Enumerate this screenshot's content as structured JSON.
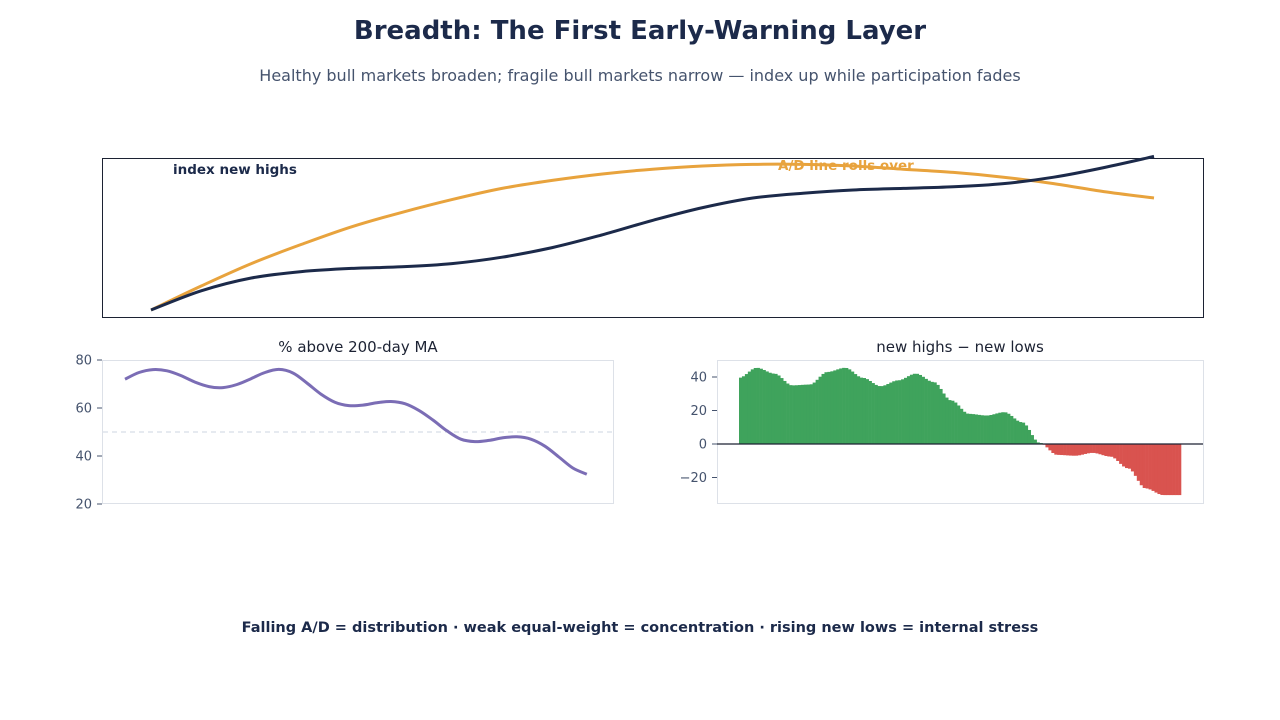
{
  "header": {
    "title": "Breadth: The First Early-Warning Layer",
    "subtitle": "Healthy bull markets broaden; fragile bull markets narrow — index up while participation fades"
  },
  "footer": {
    "text": "Falling A/D = distribution · weak equal-weight = concentration · rising new lows = internal stress"
  },
  "colors": {
    "index_line": "#1c2a4a",
    "ad_line": "#e8a33d",
    "pct_line": "#7b6db5",
    "positive_bar": "#3fa35c",
    "negative_bar": "#d9534f",
    "threshold_line": "#d8dde6",
    "zero_line": "#1c2233"
  },
  "chart_data": [
    {
      "type": "line",
      "title": "",
      "annotations": [
        {
          "text": "index new highs",
          "series": "index"
        },
        {
          "text": "A/D line rolls over",
          "series": "ad"
        }
      ],
      "x": [
        0,
        1,
        2,
        3,
        4,
        5,
        6,
        7,
        8,
        9,
        10,
        11,
        12,
        13,
        14,
        15,
        16,
        17,
        18,
        19,
        20
      ],
      "series": [
        {
          "key": "index",
          "values": [
            0.0,
            0.12,
            0.2,
            0.24,
            0.26,
            0.27,
            0.29,
            0.33,
            0.39,
            0.47,
            0.56,
            0.64,
            0.7,
            0.73,
            0.75,
            0.76,
            0.77,
            0.79,
            0.83,
            0.89,
            0.96
          ]
        },
        {
          "key": "ad",
          "values": [
            0.0,
            0.15,
            0.29,
            0.41,
            0.52,
            0.61,
            0.69,
            0.76,
            0.81,
            0.85,
            0.88,
            0.9,
            0.91,
            0.91,
            0.9,
            0.88,
            0.86,
            0.83,
            0.79,
            0.74,
            0.7
          ]
        }
      ],
      "ylim": [
        0,
        1
      ],
      "grid": false,
      "axis_ticks": false
    },
    {
      "type": "line",
      "title": "% above 200-day MA",
      "x": [
        0,
        2.5,
        5,
        7.5,
        10,
        12.5,
        15,
        17.5,
        20,
        22.5,
        25,
        27.5,
        30,
        32.5,
        35,
        37.5,
        40,
        42.5,
        45,
        47.5,
        50,
        52.5,
        55,
        57.5,
        60,
        62.5,
        65,
        67.5,
        70,
        72.5,
        75,
        77.5,
        80,
        82.5,
        85,
        87.5,
        90,
        92.5,
        95,
        97.5,
        100
      ],
      "values": [
        72,
        74.8,
        76,
        75.5,
        73.5,
        70.8,
        68.9,
        68.5,
        69.8,
        72.2,
        74.8,
        76.1,
        74.6,
        70.4,
        65.8,
        62.4,
        61,
        61.2,
        62.2,
        62.7,
        61.8,
        59,
        55,
        50.5,
        47,
        46,
        46.5,
        47.6,
        48,
        47,
        44.1,
        39.6,
        35,
        32.4,
        31.7,
        32,
        32,
        32,
        32,
        32,
        32
      ],
      "x_visible_max": 83.6,
      "threshold": 50,
      "yticks": [
        20,
        40,
        60,
        80
      ],
      "ylim": [
        20,
        80
      ]
    },
    {
      "type": "bar",
      "title": "new highs − new lows",
      "x": [
        0,
        4,
        8,
        12,
        16,
        20,
        24,
        28,
        32,
        36,
        40,
        44,
        48,
        52,
        56,
        60,
        64,
        68,
        72,
        76,
        80,
        84,
        88,
        92,
        96,
        100
      ],
      "values": [
        39.5,
        45.5,
        42,
        35,
        35.5,
        43,
        45.5,
        39.5,
        34.5,
        38,
        42,
        37,
        26,
        18,
        17,
        19,
        13,
        0.7,
        -6.5,
        -7,
        -5.3,
        -7.5,
        -14.5,
        -26.5,
        -30.5,
        -30.5
      ],
      "zero_line": 0,
      "yticks": [
        -20,
        0,
        20,
        40
      ],
      "ylim": [
        -35,
        50
      ]
    }
  ]
}
